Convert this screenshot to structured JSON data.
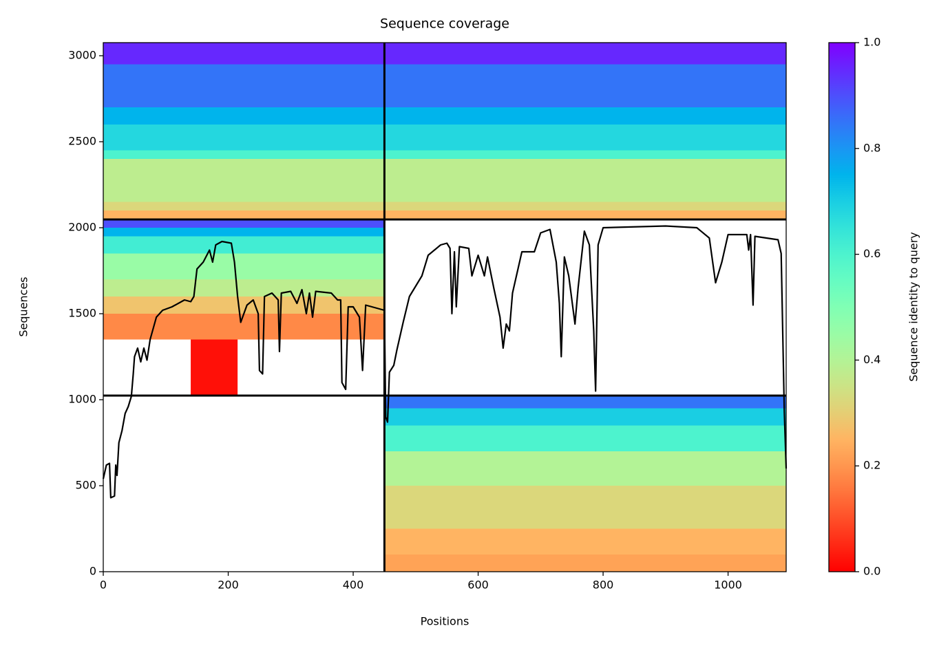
{
  "chart_data": {
    "type": "coverage",
    "title": "Sequence coverage",
    "xlabel": "Positions",
    "ylabel": "Sequences",
    "colorbar_label": "Sequence identity to query",
    "xlim": [
      0,
      1093
    ],
    "ylim": [
      0,
      3076
    ],
    "xticks": [
      0,
      200,
      400,
      600,
      800,
      1000
    ],
    "yticks": [
      0,
      500,
      1000,
      1500,
      2000,
      2500,
      3000
    ],
    "clim": [
      0,
      1
    ],
    "cticks": [
      {
        "value": 0,
        "label": "0.0"
      },
      0.2,
      0.4,
      0.6,
      0.8,
      {
        "value": 1,
        "label": "1.0"
      }
    ],
    "colormap": "rainbow_r",
    "dividers": {
      "x": [
        450
      ],
      "y": [
        1024,
        2048
      ]
    },
    "blocks": [
      {
        "x": [
          0,
          1093
        ],
        "y": [
          2048,
          2100
        ],
        "identity": 0.25
      },
      {
        "x": [
          0,
          1093
        ],
        "y": [
          2100,
          2150
        ],
        "identity": 0.32
      },
      {
        "x": [
          0,
          1093
        ],
        "y": [
          2150,
          2400
        ],
        "identity": 0.38
      },
      {
        "x": [
          0,
          1093
        ],
        "y": [
          2400,
          2450
        ],
        "identity": 0.6
      },
      {
        "x": [
          0,
          1093
        ],
        "y": [
          2450,
          2600
        ],
        "identity": 0.68
      },
      {
        "x": [
          0,
          1093
        ],
        "y": [
          2600,
          2700
        ],
        "identity": 0.75
      },
      {
        "x": [
          0,
          1093
        ],
        "y": [
          2700,
          2950
        ],
        "identity": 0.85
      },
      {
        "x": [
          0,
          1093
        ],
        "y": [
          2950,
          3076
        ],
        "identity": 0.95
      },
      {
        "x": [
          0,
          450
        ],
        "y": [
          2000,
          2048
        ],
        "identity": 0.9
      },
      {
        "x": [
          0,
          450
        ],
        "y": [
          1950,
          2000
        ],
        "identity": 0.75
      },
      {
        "x": [
          0,
          450
        ],
        "y": [
          1850,
          1950
        ],
        "identity": 0.62
      },
      {
        "x": [
          0,
          450
        ],
        "y": [
          1700,
          1850
        ],
        "identity": 0.45
      },
      {
        "x": [
          0,
          450
        ],
        "y": [
          1600,
          1700
        ],
        "identity": 0.38
      },
      {
        "x": [
          0,
          450
        ],
        "y": [
          1500,
          1600
        ],
        "identity": 0.28
      },
      {
        "x": [
          0,
          450
        ],
        "y": [
          1350,
          1500
        ],
        "identity": 0.18
      },
      {
        "x": [
          140,
          215
        ],
        "y": [
          1024,
          1350
        ],
        "identity": 0.02
      },
      {
        "x": [
          450,
          1093
        ],
        "y": [
          950,
          1024
        ],
        "identity": 0.85
      },
      {
        "x": [
          450,
          1093
        ],
        "y": [
          850,
          950
        ],
        "identity": 0.7
      },
      {
        "x": [
          450,
          1093
        ],
        "y": [
          700,
          850
        ],
        "identity": 0.6
      },
      {
        "x": [
          450,
          1093
        ],
        "y": [
          500,
          700
        ],
        "identity": 0.4
      },
      {
        "x": [
          450,
          1093
        ],
        "y": [
          250,
          500
        ],
        "identity": 0.32
      },
      {
        "x": [
          450,
          1093
        ],
        "y": [
          100,
          250
        ],
        "identity": 0.25
      },
      {
        "x": [
          450,
          1093
        ],
        "y": [
          0,
          100
        ],
        "identity": 0.22
      }
    ],
    "coverage": {
      "color": "#000000",
      "x": [
        0,
        5,
        10,
        12,
        18,
        20,
        22,
        25,
        30,
        35,
        40,
        45,
        48,
        50,
        55,
        60,
        65,
        70,
        75,
        85,
        95,
        110,
        130,
        140,
        145,
        150,
        160,
        170,
        175,
        180,
        190,
        205,
        210,
        215,
        220,
        230,
        240,
        248,
        250,
        255,
        258,
        270,
        280,
        282,
        285,
        300,
        310,
        318,
        325,
        330,
        335,
        340,
        365,
        375,
        380,
        382,
        388,
        392,
        400,
        410,
        415,
        420,
        450,
        452,
        455,
        458,
        465,
        470,
        480,
        490,
        500,
        510,
        520,
        530,
        540,
        550,
        555,
        558,
        562,
        565,
        570,
        585,
        590,
        600,
        610,
        615,
        625,
        635,
        640,
        645,
        650,
        655,
        670,
        690,
        700,
        715,
        725,
        730,
        733,
        738,
        745,
        755,
        760,
        770,
        778,
        785,
        788,
        792,
        800,
        900,
        950,
        970,
        980,
        990,
        1000,
        1030,
        1033,
        1036,
        1040,
        1043,
        1080,
        1085,
        1090,
        1093
      ],
      "values": [
        540,
        620,
        630,
        430,
        440,
        620,
        560,
        750,
        820,
        920,
        960,
        1020,
        1150,
        1250,
        1300,
        1220,
        1300,
        1230,
        1350,
        1480,
        1520,
        1540,
        1580,
        1570,
        1600,
        1760,
        1800,
        1870,
        1800,
        1900,
        1920,
        1910,
        1800,
        1600,
        1450,
        1550,
        1580,
        1500,
        1170,
        1150,
        1600,
        1620,
        1580,
        1280,
        1620,
        1630,
        1560,
        1640,
        1500,
        1620,
        1480,
        1630,
        1620,
        1580,
        1580,
        1100,
        1060,
        1540,
        1540,
        1480,
        1170,
        1550,
        1520,
        900,
        870,
        1160,
        1200,
        1290,
        1450,
        1600,
        1660,
        1720,
        1840,
        1870,
        1900,
        1910,
        1880,
        1500,
        1860,
        1540,
        1890,
        1880,
        1720,
        1840,
        1720,
        1830,
        1650,
        1480,
        1300,
        1440,
        1400,
        1620,
        1860,
        1860,
        1970,
        1990,
        1800,
        1560,
        1250,
        1830,
        1720,
        1440,
        1650,
        1980,
        1900,
        1400,
        1050,
        1900,
        2000,
        2010,
        2000,
        1940,
        1680,
        1800,
        1960,
        1960,
        1870,
        1960,
        1550,
        1950,
        1930,
        1850,
        930,
        600
      ]
    }
  }
}
